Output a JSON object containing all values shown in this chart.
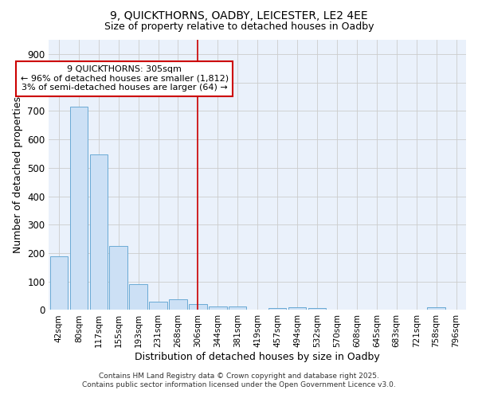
{
  "title1": "9, QUICKTHORNS, OADBY, LEICESTER, LE2 4EE",
  "title2": "Size of property relative to detached houses in Oadby",
  "xlabel": "Distribution of detached houses by size in Oadby",
  "ylabel": "Number of detached properties",
  "bar_color": "#cce0f5",
  "bar_edge_color": "#6aaad4",
  "grid_color": "#cccccc",
  "plot_bg_color": "#eaf1fb",
  "fig_bg_color": "#ffffff",
  "categories": [
    "42sqm",
    "80sqm",
    "117sqm",
    "155sqm",
    "193sqm",
    "231sqm",
    "268sqm",
    "306sqm",
    "344sqm",
    "381sqm",
    "419sqm",
    "457sqm",
    "494sqm",
    "532sqm",
    "570sqm",
    "608sqm",
    "645sqm",
    "683sqm",
    "721sqm",
    "758sqm",
    "796sqm"
  ],
  "values": [
    190,
    715,
    547,
    224,
    90,
    28,
    37,
    22,
    12,
    12,
    0,
    8,
    10,
    6,
    0,
    0,
    0,
    0,
    0,
    10,
    0
  ],
  "vline_index": 7,
  "vline_color": "#cc0000",
  "annotation_line1": "9 QUICKTHORNS: 305sqm",
  "annotation_line2": "← 96% of detached houses are smaller (1,812)",
  "annotation_line3": "3% of semi-detached houses are larger (64) →",
  "annotation_box_color": "#cc0000",
  "annotation_text_color": "#000000",
  "footer1": "Contains HM Land Registry data © Crown copyright and database right 2025.",
  "footer2": "Contains public sector information licensed under the Open Government Licence v3.0.",
  "ylim": [
    0,
    950
  ],
  "yticks": [
    0,
    100,
    200,
    300,
    400,
    500,
    600,
    700,
    800,
    900
  ]
}
